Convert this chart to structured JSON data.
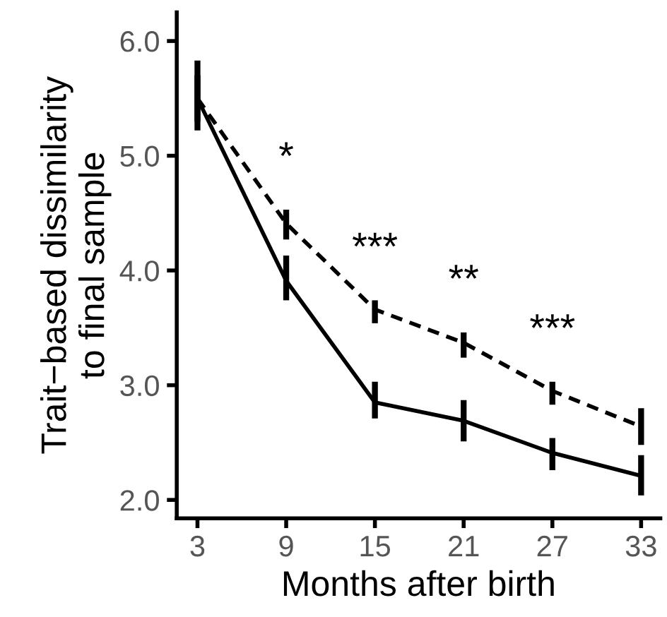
{
  "chart_data": {
    "type": "line",
    "xlabel": "Months after birth",
    "ylabel": "Trait−based dissimilarity\nto final sample",
    "x": [
      3,
      9,
      15,
      21,
      27,
      33
    ],
    "series": [
      {
        "color": "#000000",
        "line_style": "solid",
        "values": [
          5.5,
          3.91,
          2.85,
          2.69,
          2.41,
          2.21
        ],
        "errors": [
          [
            5.22,
            5.83
          ],
          [
            3.74,
            4.13
          ],
          [
            2.71,
            3.03
          ],
          [
            2.51,
            2.87
          ],
          [
            2.26,
            2.54
          ],
          [
            2.04,
            2.39
          ]
        ]
      },
      {
        "color": "#000000",
        "line_style": "dashed",
        "values": [
          5.5,
          4.41,
          3.66,
          3.37,
          2.95,
          2.64
        ],
        "errors": [
          [
            5.3,
            5.7
          ],
          [
            4.27,
            4.53
          ],
          [
            3.54,
            3.74
          ],
          [
            3.24,
            3.46
          ],
          [
            2.83,
            3.03
          ],
          [
            2.48,
            2.8
          ]
        ]
      }
    ],
    "annotations": [
      "*",
      "***",
      "**",
      "***"
    ],
    "xlim": [
      1.6,
      34.3
    ],
    "xticks": [
      3,
      9,
      15,
      21,
      27,
      33
    ],
    "ylim": [
      1.84,
      6.25
    ],
    "yticks": [
      {
        "value": 2,
        "label": "2.0"
      },
      {
        "value": 3,
        "label": "3.0"
      },
      {
        "value": 4,
        "label": "4.0"
      },
      {
        "value": 5,
        "label": "5.0"
      },
      {
        "value": 6,
        "label": "6.0"
      }
    ],
    "grid": false,
    "legend": false,
    "marker": "none"
  }
}
